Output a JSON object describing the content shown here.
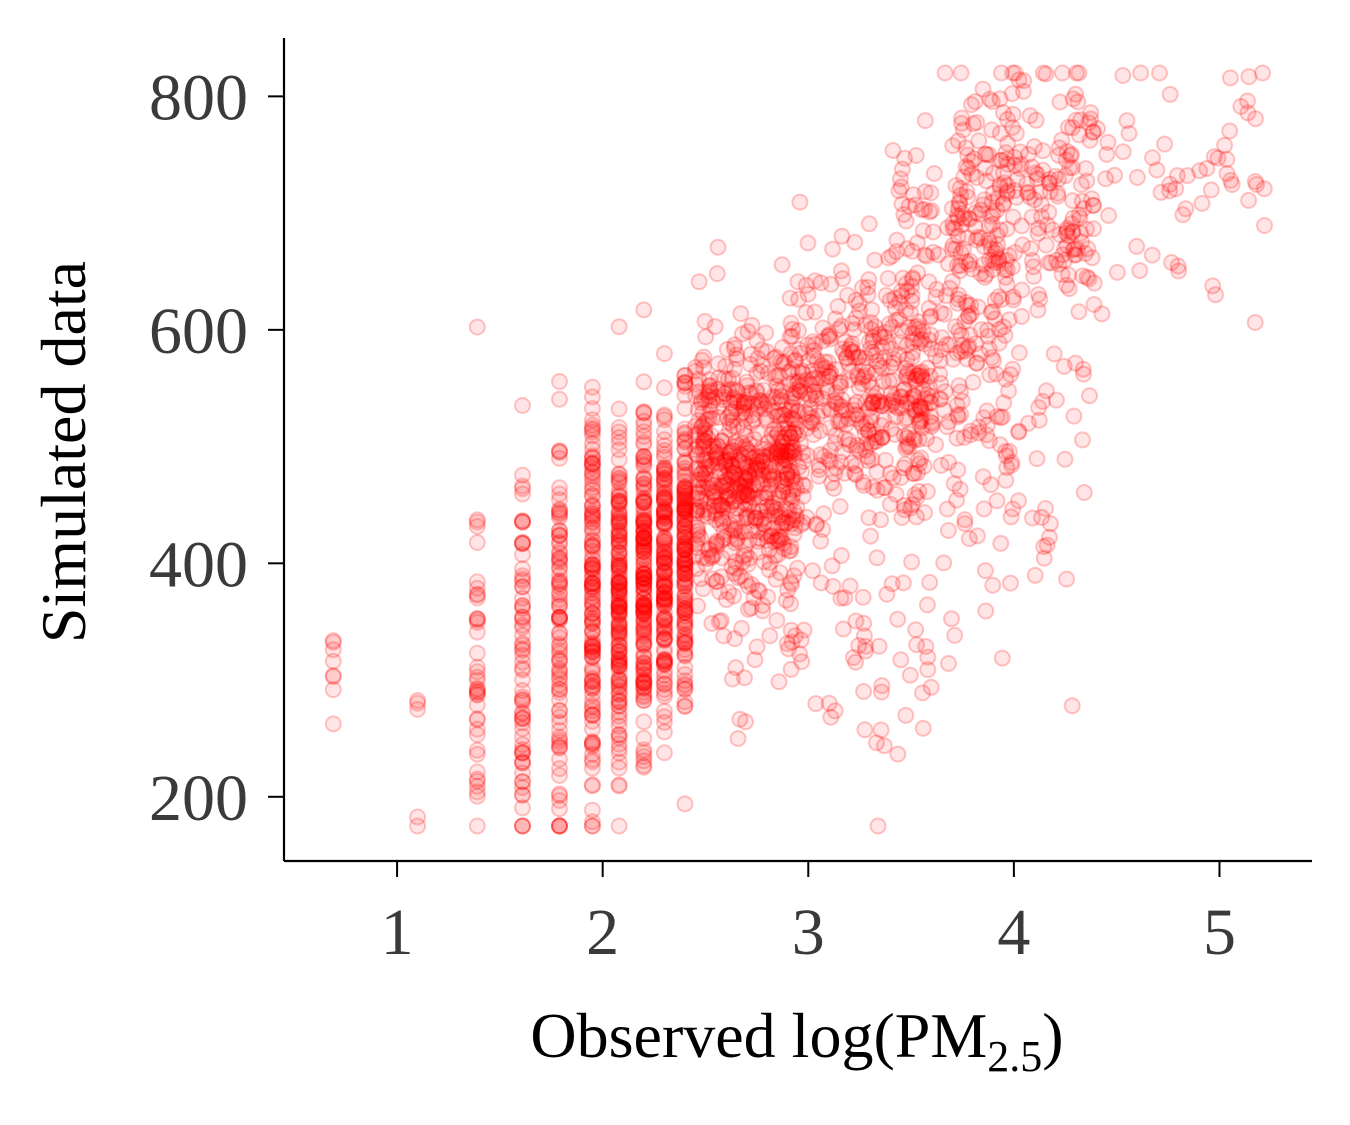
{
  "chart_data": {
    "type": "scatter",
    "xlabel": "Observed log(PM2.5)",
    "xlabel_parts": {
      "main": "Observed log(PM",
      "sub": "2.5",
      "close": ")"
    },
    "ylabel": "Simulated data",
    "xlim": [
      0.45,
      5.45
    ],
    "ylim": [
      145,
      850
    ],
    "xticks": [
      1,
      2,
      3,
      4,
      5
    ],
    "yticks": [
      200,
      400,
      600,
      800
    ],
    "xtick_labels": [
      "1",
      "2",
      "3",
      "4",
      "5"
    ],
    "ytick_labels": [
      "200",
      "400",
      "600",
      "800"
    ],
    "grid": false,
    "legend": "none",
    "marker_color": "#ff0000",
    "marker_alpha": 0.12,
    "approx_point_count": 2500,
    "point_clusters": [
      {
        "x_levels": [
          0.69
        ],
        "y_mean": 300,
        "y_sd": 25,
        "n": 8
      },
      {
        "x_levels": [
          1.1
        ],
        "y_mean": 270,
        "y_sd": 45,
        "n": 5
      },
      {
        "x_levels": [
          1.39
        ],
        "y_mean": 300,
        "y_sd": 90,
        "n": 40
      },
      {
        "x_levels": [
          1.61
        ],
        "y_mean": 310,
        "y_sd": 95,
        "n": 70
      },
      {
        "x_levels": [
          1.79
        ],
        "y_mean": 330,
        "y_sd": 95,
        "n": 90
      },
      {
        "x_levels": [
          1.95
        ],
        "y_mean": 360,
        "y_sd": 80,
        "n": 140
      },
      {
        "x_levels": [
          2.08
        ],
        "y_mean": 370,
        "y_sd": 80,
        "n": 160
      },
      {
        "x_levels": [
          2.2
        ],
        "y_mean": 390,
        "y_sd": 75,
        "n": 170
      },
      {
        "x_levels": [
          2.3
        ],
        "y_mean": 400,
        "y_sd": 70,
        "n": 150
      },
      {
        "x_levels": [
          2.4
        ],
        "y_mean": 420,
        "y_sd": 65,
        "n": 150
      },
      {
        "x_range": [
          2.45,
          2.95
        ],
        "y_mean": 480,
        "y_sd": 55,
        "n": 600
      },
      {
        "x_range": [
          2.9,
          3.6
        ],
        "y_mean": 545,
        "y_sd": 55,
        "n": 400
      },
      {
        "x_range": [
          3.4,
          4.0
        ],
        "y_mean": 600,
        "y_sd": 90,
        "n": 200
      },
      {
        "x_range": [
          3.7,
          4.4
        ],
        "y_mean": 710,
        "y_sd": 60,
        "n": 250
      },
      {
        "x_range": [
          4.4,
          5.25
        ],
        "y_mean": 740,
        "y_sd": 60,
        "n": 60
      },
      {
        "x_range": [
          2.6,
          3.6
        ],
        "y_mean": 320,
        "y_sd": 60,
        "n": 80
      },
      {
        "x_range": [
          3.6,
          4.4
        ],
        "y_mean": 480,
        "y_sd": 90,
        "n": 60
      }
    ]
  }
}
